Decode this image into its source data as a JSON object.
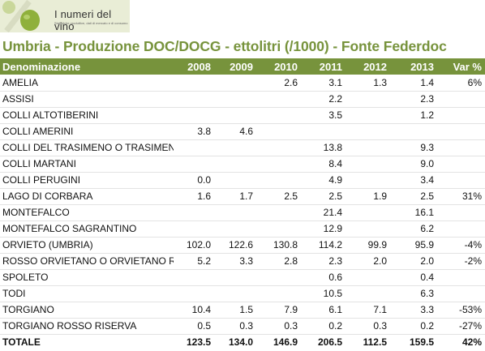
{
  "logo": {
    "brand": "I numeri del vino",
    "tagline": "Statistiche produttive, dati di mercato e di consumo"
  },
  "title": "Umbria - Produzione DOC/DOCG - ettolitri (/1000) - Fonte Federdoc",
  "table": {
    "headers": [
      "Denominazione",
      "2008",
      "2009",
      "2010",
      "2011",
      "2012",
      "2013",
      "Var %"
    ],
    "rows": [
      [
        "AMELIA",
        "",
        "",
        "2.6",
        "3.1",
        "1.3",
        "1.4",
        "6%"
      ],
      [
        "ASSISI",
        "",
        "",
        "",
        "2.2",
        "",
        "2.3",
        ""
      ],
      [
        "COLLI ALTOTIBERINI",
        "",
        "",
        "",
        "3.5",
        "",
        "1.2",
        ""
      ],
      [
        "COLLI AMERINI",
        "3.8",
        "4.6",
        "",
        "",
        "",
        "",
        ""
      ],
      [
        "COLLI DEL  TRASIMENO  O  TRASIMENO",
        "",
        "",
        "",
        "13.8",
        "",
        "9.3",
        ""
      ],
      [
        "COLLI MARTANI",
        "",
        "",
        "",
        "8.4",
        "",
        "9.0",
        ""
      ],
      [
        "COLLI PERUGINI",
        "0.0",
        "",
        "",
        "4.9",
        "",
        "3.4",
        ""
      ],
      [
        "LAGO DI CORBARA",
        "1.6",
        "1.7",
        "2.5",
        "2.5",
        "1.9",
        "2.5",
        "31%"
      ],
      [
        "MONTEFALCO",
        "",
        "",
        "",
        "21.4",
        "",
        "16.1",
        ""
      ],
      [
        "MONTEFALCO SAGRANTINO",
        "",
        "",
        "",
        "12.9",
        "",
        "6.2",
        ""
      ],
      [
        "ORVIETO  (UMBRIA)",
        "102.0",
        "122.6",
        "130.8",
        "114.2",
        "99.9",
        "95.9",
        "-4%"
      ],
      [
        "ROSSO ORVIETANO O ORVIETANO ROSSO",
        "5.2",
        "3.3",
        "2.8",
        "2.3",
        "2.0",
        "2.0",
        "-2%"
      ],
      [
        "SPOLETO",
        "",
        "",
        "",
        "0.6",
        "",
        "0.4",
        ""
      ],
      [
        "TODI",
        "",
        "",
        "",
        "10.5",
        "",
        "6.3",
        ""
      ],
      [
        "TORGIANO",
        "10.4",
        "1.5",
        "7.9",
        "6.1",
        "7.1",
        "3.3",
        "-53%"
      ],
      [
        "TORGIANO ROSSO RISERVA",
        "0.5",
        "0.3",
        "0.3",
        "0.2",
        "0.3",
        "0.2",
        "-27%"
      ]
    ],
    "total": [
      "TOTALE",
      "123.5",
      "134.0",
      "146.9",
      "206.5",
      "112.5",
      "159.5",
      "42%"
    ]
  },
  "colors": {
    "accent": "#77933c",
    "logo_bg": "#e9edd6"
  }
}
